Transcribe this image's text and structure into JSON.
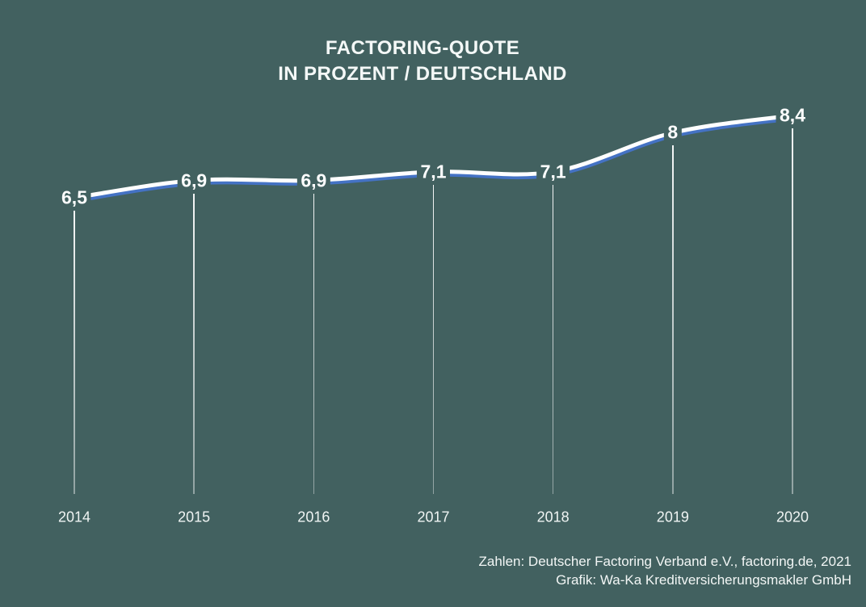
{
  "title": {
    "line1": "FACTORING-QUOTE",
    "line2": "IN PROZENT / DEUTSCHLAND"
  },
  "chart_data": {
    "type": "line",
    "title": "FACTORING-QUOTE IN PROZENT / DEUTSCHLAND",
    "categories": [
      "2014",
      "2015",
      "2016",
      "2017",
      "2018",
      "2019",
      "2020"
    ],
    "values": [
      6.5,
      6.9,
      6.9,
      7.1,
      7.1,
      8,
      8.4
    ],
    "point_labels": [
      "6,5",
      "6,9",
      "6,9",
      "7,1",
      "7,1",
      "8",
      "8,4"
    ],
    "ylim": [
      6.5,
      8.4
    ],
    "xlabel": "",
    "ylabel": "",
    "grid": false,
    "legend": "none",
    "styles": {
      "background": "#426160",
      "line_color": "#ffffff",
      "line_shadow_color": "#4472c4",
      "drop_line_color": "#ffffff",
      "text_color": "#f4f8f7"
    }
  },
  "footer": {
    "line1": "Zahlen: Deutscher Factoring Verband e.V., factoring.de, 2021",
    "line2": "Grafik: Wa-Ka Kreditversicherungsmakler GmbH"
  }
}
